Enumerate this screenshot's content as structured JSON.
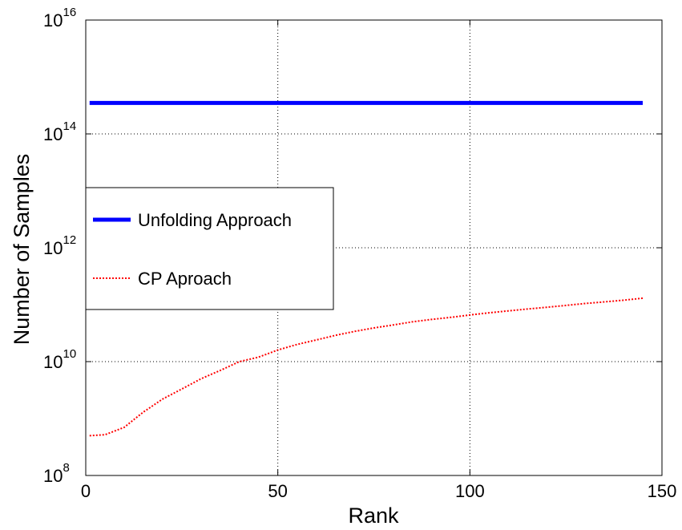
{
  "chart_data": {
    "type": "line",
    "title": "",
    "xlabel": "Rank",
    "ylabel": "Number of Samples",
    "xlim": [
      0,
      150
    ],
    "ylim": [
      100000000.0,
      1e+16
    ],
    "yscale": "log",
    "grid": true,
    "legend_position": "center-left",
    "x_ticks": [
      {
        "value": 0,
        "label": "0"
      },
      {
        "value": 50,
        "label": "50"
      },
      {
        "value": 100,
        "label": "100"
      },
      {
        "value": 150,
        "label": "150"
      }
    ],
    "y_ticks": [
      {
        "value": 100000000.0,
        "base": "10",
        "exp": "8"
      },
      {
        "value": 10000000000.0,
        "base": "10",
        "exp": "10"
      },
      {
        "value": 1000000000000.0,
        "base": "10",
        "exp": "12"
      },
      {
        "value": 100000000000000.0,
        "base": "10",
        "exp": "14"
      },
      {
        "value": 1e+16,
        "base": "10",
        "exp": "16"
      }
    ],
    "series": [
      {
        "name": "Unfolding Approach",
        "color": "#0000ff",
        "style": "solid",
        "x": [
          1,
          145
        ],
        "y": [
          350000000000000.0,
          350000000000000.0
        ]
      },
      {
        "name": "CP Aproach",
        "color": "#ff0000",
        "style": "dotted",
        "x": [
          1,
          5,
          10,
          15,
          20,
          25,
          30,
          35,
          40,
          45,
          50,
          55,
          60,
          65,
          70,
          75,
          80,
          85,
          90,
          95,
          100,
          105,
          110,
          115,
          120,
          125,
          130,
          135,
          140,
          145
        ],
        "y": [
          500000000.0,
          520000000.0,
          700000000.0,
          1300000000.0,
          2200000000.0,
          3300000000.0,
          5000000000.0,
          7000000000.0,
          10000000000.0,
          12000000000.0,
          16000000000.0,
          20000000000.0,
          24000000000.0,
          29000000000.0,
          34000000000.0,
          39000000000.0,
          44000000000.0,
          50000000000.0,
          55000000000.0,
          60000000000.0,
          66000000000.0,
          72000000000.0,
          78000000000.0,
          84000000000.0,
          90000000000.0,
          97000000000.0,
          105000000000.0,
          112000000000.0,
          120000000000.0,
          130000000000.0
        ]
      }
    ]
  }
}
